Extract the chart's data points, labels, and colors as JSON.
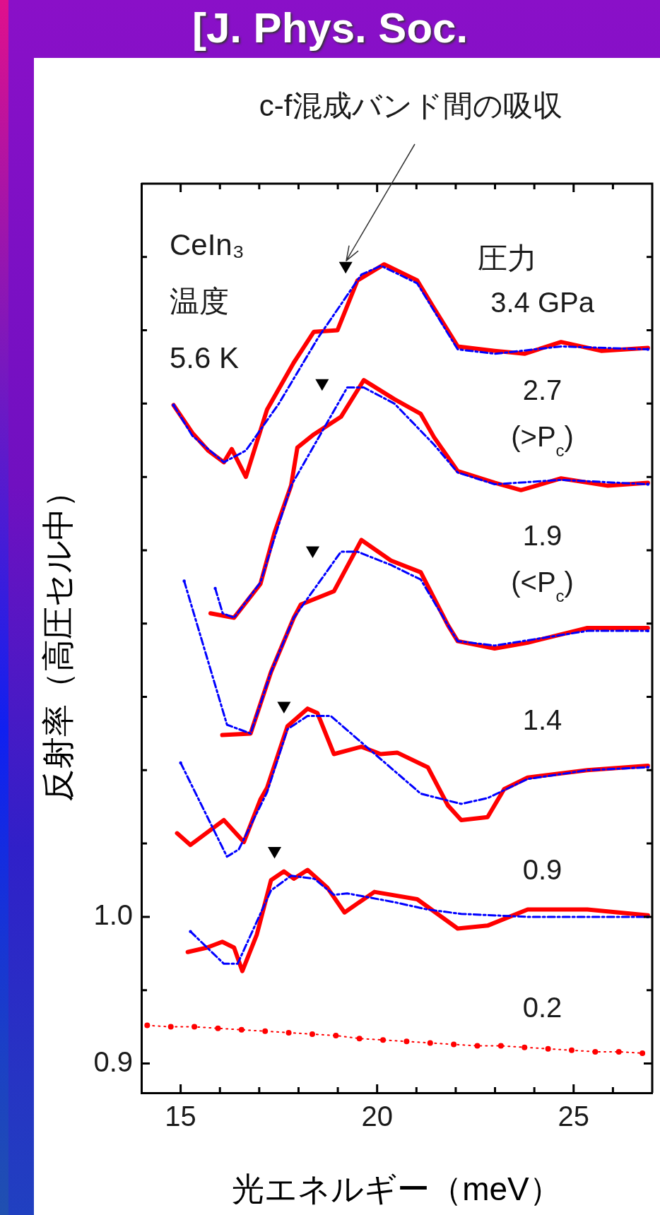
{
  "chart_data": {
    "type": "line",
    "title": "[J. Phys. Soc.",
    "xlabel": "光エネルギー（meV）",
    "ylabel": "反射率（高圧セル中）",
    "legend_title": "圧力",
    "xlim": [
      14,
      27
    ],
    "xticks": [
      15,
      {
        "value": 16,
        "label": null
      },
      {
        "value": 17,
        "label": null
      },
      {
        "value": 18,
        "label": null
      },
      {
        "value": 19,
        "label": null
      },
      20,
      {
        "value": 21,
        "label": null
      },
      {
        "value": 22,
        "label": null
      },
      {
        "value": 23,
        "label": null
      },
      {
        "value": 24,
        "label": null
      },
      25,
      {
        "value": 26,
        "label": null
      }
    ],
    "ylim": [
      0.88,
      1.5
    ],
    "yticks": [
      0.9,
      {
        "value": 0.95,
        "label": null
      },
      {
        "value": 1,
        "label": "1.0"
      },
      {
        "value": 1.05,
        "label": null
      },
      {
        "value": 1.1,
        "label": null
      },
      {
        "value": 1.15,
        "label": null
      },
      {
        "value": 1.2,
        "label": null
      },
      {
        "value": 1.25,
        "label": null
      },
      {
        "value": 1.3,
        "label": null
      },
      {
        "value": 1.35,
        "label": null
      },
      {
        "value": 1.4,
        "label": null
      },
      {
        "value": 1.45,
        "label": null
      }
    ],
    "grid": false,
    "series": [
      {
        "name": "3.4 GPa",
        "color": "#ff0000",
        "line_style": "solid",
        "marker": "none",
        "x": [
          14.82,
          15.3,
          15.7,
          16.1,
          16.3,
          16.66,
          17.2,
          17.88,
          18.39,
          18.99,
          19.5,
          20.18,
          21.02,
          21.45,
          22.05,
          22.99,
          23.75,
          24.68,
          25.7,
          26.89
        ],
        "values": [
          1.349,
          1.33,
          1.318,
          1.31,
          1.319,
          1.3,
          1.346,
          1.378,
          1.399,
          1.4,
          1.434,
          1.445,
          1.434,
          1.415,
          1.389,
          1.386,
          1.384,
          1.392,
          1.386,
          1.388
        ]
      },
      {
        "name": "2.7\n(>P$_{c}$)",
        "color": "#ff0000",
        "line_style": "solid",
        "marker": "none",
        "x": [
          15.76,
          16.36,
          17.03,
          17.39,
          17.81,
          17.97,
          18.39,
          19.08,
          19.66,
          20.44,
          21.11,
          21.45,
          22.05,
          22.99,
          23.66,
          24.68,
          25.87,
          26.89
        ],
        "values": [
          1.207,
          1.204,
          1.227,
          1.262,
          1.294,
          1.32,
          1.329,
          1.341,
          1.366,
          1.353,
          1.343,
          1.327,
          1.304,
          1.296,
          1.291,
          1.299,
          1.294,
          1.296
        ]
      },
      {
        "name": "1.9\n(<P$_{c}$)",
        "color": "#ff0000",
        "line_style": "solid",
        "marker": "none",
        "x": [
          16.06,
          16.78,
          17.3,
          17.88,
          18.06,
          18.9,
          19.6,
          20.35,
          21.11,
          21.8,
          22.05,
          22.99,
          23.83,
          25.35,
          26.89
        ],
        "values": [
          1.124,
          1.125,
          1.167,
          1.204,
          1.213,
          1.222,
          1.257,
          1.243,
          1.235,
          1.199,
          1.188,
          1.183,
          1.187,
          1.197,
          1.197
        ]
      },
      {
        "name": "1.4",
        "color": "#ff0000",
        "line_style": "solid",
        "marker": "none",
        "x": [
          14.91,
          15.25,
          16.1,
          16.61,
          17.03,
          17.2,
          17.72,
          18.23,
          18.48,
          18.9,
          19.6,
          20.09,
          20.51,
          21.29,
          21.8,
          22.14,
          22.81,
          23.23,
          23.83,
          25.35,
          26.89
        ],
        "values": [
          1.057,
          1.049,
          1.066,
          1.051,
          1.08,
          1.088,
          1.13,
          1.142,
          1.139,
          1.111,
          1.116,
          1.111,
          1.112,
          1.102,
          1.076,
          1.066,
          1.068,
          1.087,
          1.095,
          1.1,
          1.103
        ]
      },
      {
        "name": "0.9",
        "color": "#ff0000",
        "line_style": "solid",
        "marker": "none",
        "x": [
          15.18,
          15.67,
          16.06,
          16.36,
          16.57,
          16.94,
          17.3,
          17.63,
          17.88,
          18.23,
          18.73,
          19.17,
          19.93,
          21.02,
          22.05,
          22.81,
          23.83,
          25.35,
          26.89
        ],
        "values": [
          0.976,
          0.979,
          0.983,
          0.979,
          0.963,
          0.988,
          1.025,
          1.031,
          1.026,
          1.032,
          1.02,
          1.003,
          1.017,
          1.012,
          0.992,
          0.994,
          1.005,
          1.005,
          1.001
        ]
      },
      {
        "name": "0.2",
        "color": "#ff0000",
        "line_style": "dotted",
        "marker": "circle",
        "x": [
          14.15,
          14.75,
          15.35,
          15.95,
          16.55,
          17.15,
          17.75,
          18.35,
          18.95,
          19.55,
          20.15,
          20.75,
          21.35,
          21.95,
          22.55,
          23.15,
          23.75,
          24.35,
          24.95,
          25.55,
          26.15,
          26.75
        ],
        "values": [
          0.926,
          0.925,
          0.925,
          0.924,
          0.923,
          0.922,
          0.921,
          0.92,
          0.919,
          0.917,
          0.916,
          0.915,
          0.914,
          0.913,
          0.912,
          0.912,
          0.911,
          0.91,
          0.909,
          0.908,
          0.908,
          0.907
        ]
      },
      {
        "color": "#0000ff",
        "line_style": "dashed",
        "marker": "none",
        "x": [
          14.82,
          15.3,
          16.1,
          16.66,
          17.5,
          18.5,
          19.6,
          20.1,
          21.02,
          22.05,
          23,
          24.68,
          26.89
        ],
        "values": [
          1.349,
          1.328,
          1.31,
          1.318,
          1.35,
          1.395,
          1.438,
          1.444,
          1.432,
          1.387,
          1.384,
          1.389,
          1.387
        ]
      },
      {
        "color": "#0000ff",
        "line_style": "dashed",
        "marker": "none",
        "x": [
          15.88,
          16.07,
          16.36,
          17.03,
          17.81,
          19.24,
          19.66,
          20.44,
          21.45,
          22.05,
          22.99,
          24.68,
          26.89
        ],
        "values": [
          1.224,
          1.207,
          1.204,
          1.228,
          1.294,
          1.361,
          1.361,
          1.35,
          1.322,
          1.303,
          1.295,
          1.298,
          1.295
        ]
      },
      {
        "color": "#0000ff",
        "line_style": "dashed",
        "marker": "none",
        "x": [
          15.09,
          16.18,
          16.78,
          17.3,
          17.88,
          19.08,
          19.5,
          20.35,
          21.11,
          21.8,
          22.05,
          22.99,
          25.35,
          26.89
        ],
        "values": [
          1.229,
          1.131,
          1.125,
          1.167,
          1.204,
          1.249,
          1.249,
          1.24,
          1.23,
          1.199,
          1.188,
          1.185,
          1.195,
          1.195
        ]
      },
      {
        "color": "#0000ff",
        "line_style": "dashed",
        "marker": "none",
        "x": [
          15,
          16.18,
          16.48,
          17.2,
          17.72,
          18.23,
          18.82,
          21.11,
          22.14,
          22.81,
          23.83,
          25.35,
          26.89
        ],
        "values": [
          1.105,
          1.041,
          1.046,
          1.085,
          1.128,
          1.137,
          1.137,
          1.084,
          1.077,
          1.081,
          1.094,
          1.1,
          1.102
        ]
      },
      {
        "color": "#0000ff",
        "line_style": "dashed",
        "marker": "none",
        "x": [
          15.25,
          16.1,
          16.45,
          17.3,
          17.81,
          18.4,
          18.9,
          19.24,
          20.44,
          21.28,
          22.14,
          23.83,
          26.89
        ],
        "values": [
          0.99,
          0.968,
          0.968,
          1.018,
          1.028,
          1.026,
          1.015,
          1.016,
          1.01,
          1.005,
          1.002,
          1,
          1
        ]
      },
      {
        "type": "scatter",
        "color": "#000000",
        "marker": "triangle",
        "x": [
          19.2,
          18.6,
          18.36,
          17.63,
          17.39
        ],
        "values": [
          1.444,
          1.364,
          1.25,
          1.144,
          1.045
        ]
      }
    ],
    "annotations": [
      {
        "text": "c-f混成バンド間の吸収",
        "x": 19.2,
        "y": 1.444
      },
      "CeIn₃",
      "温度",
      "5.6 K"
    ]
  }
}
